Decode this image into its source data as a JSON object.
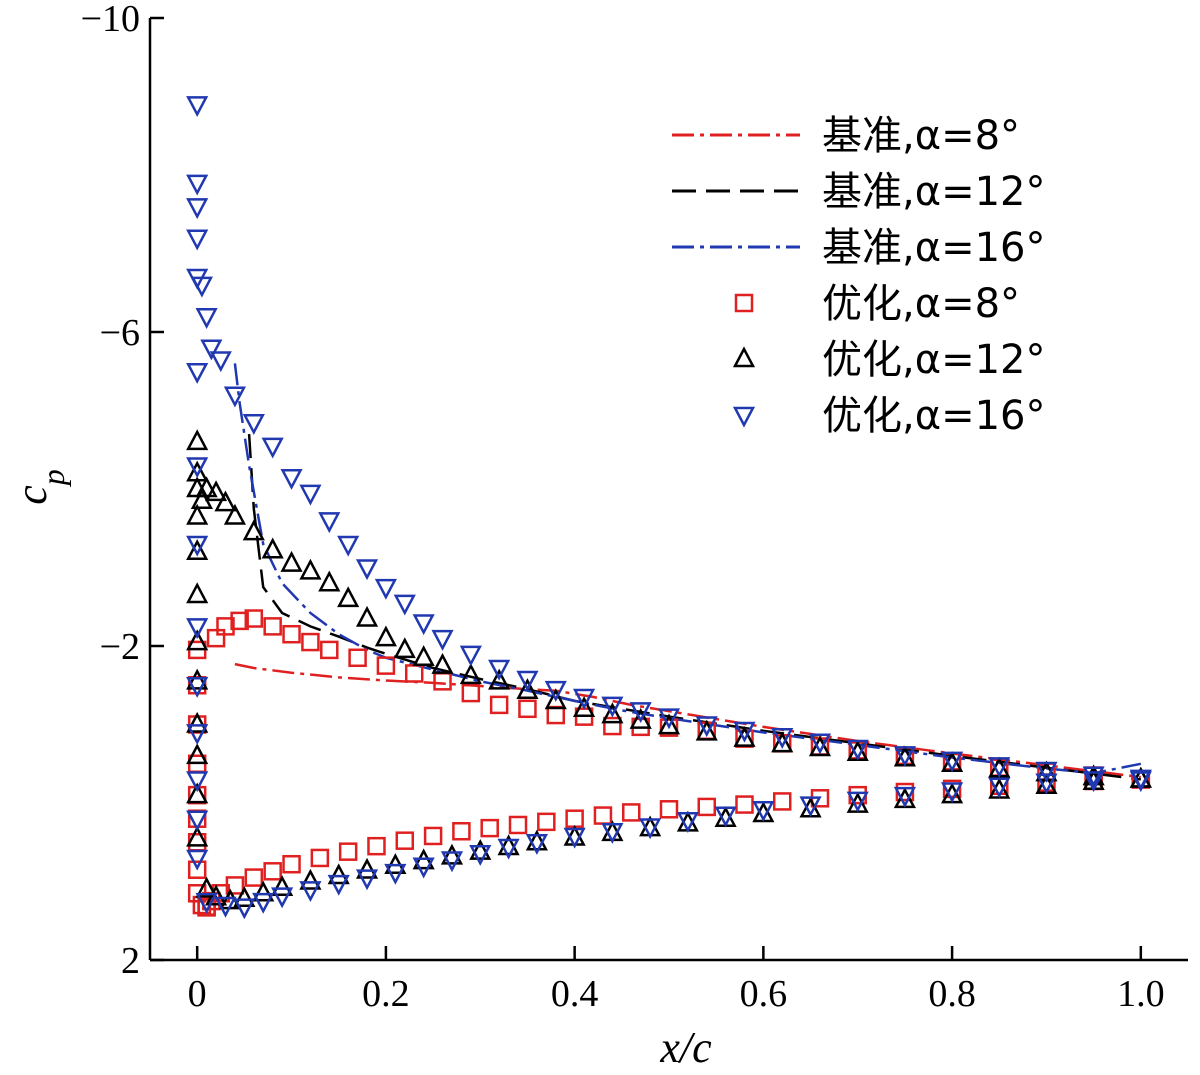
{
  "chart_data": {
    "type": "line",
    "title": "",
    "xlabel": "x/c",
    "ylabel": "c_p",
    "xlim": [
      -0.05,
      1.05
    ],
    "ylim": [
      2,
      -10
    ],
    "y_inverted": true,
    "xticks": [
      0,
      0.2,
      0.4,
      0.6,
      0.8,
      1.0
    ],
    "xtick_labels": [
      "0",
      "0.2",
      "0.4",
      "0.6",
      "0.8",
      "1.0"
    ],
    "yticks": [
      -10,
      -6,
      -2,
      2
    ],
    "ytick_labels": [
      "−10",
      "−6",
      "−2",
      "2"
    ],
    "grid": false,
    "legend_position": "top-right",
    "series": [
      {
        "name": "基准,α=8°",
        "kind": "line",
        "style": "dash-dot",
        "color": "#e02020",
        "x": [
          0.04,
          0.06,
          0.1,
          0.15,
          0.2,
          0.25,
          0.3,
          0.35,
          0.38,
          0.42,
          0.46,
          0.5,
          0.6,
          0.7,
          0.8,
          0.9,
          1.0
        ],
        "y": [
          -1.77,
          -1.72,
          -1.66,
          -1.6,
          -1.56,
          -1.53,
          -1.49,
          -1.45,
          -1.43,
          -1.35,
          -1.25,
          -1.17,
          -0.97,
          -0.79,
          -0.63,
          -0.48,
          -0.33
        ]
      },
      {
        "name": "基准,α=12°",
        "kind": "line",
        "style": "long-dash",
        "color": "#000000",
        "x": [
          0.055,
          0.06,
          0.07,
          0.09,
          0.12,
          0.15,
          0.18,
          0.2,
          0.25,
          0.3,
          0.35,
          0.4,
          0.45,
          0.5,
          0.6,
          0.7,
          0.8,
          0.9,
          1.0
        ],
        "y": [
          -4.7,
          -3.75,
          -2.75,
          -2.42,
          -2.25,
          -2.12,
          -1.98,
          -1.9,
          -1.72,
          -1.58,
          -1.45,
          -1.3,
          -1.2,
          -1.1,
          -0.92,
          -0.76,
          -0.6,
          -0.45,
          -0.3
        ]
      },
      {
        "name": "基准,α=16°",
        "kind": "line",
        "style": "dash-dot",
        "color": "#2038b0",
        "x": [
          0.04,
          0.045,
          0.055,
          0.07,
          0.09,
          0.12,
          0.15,
          0.18,
          0.2,
          0.25,
          0.3,
          0.35,
          0.4,
          0.45,
          0.5,
          0.6,
          0.7,
          0.8,
          0.9,
          0.95,
          1.0
        ],
        "y": [
          -5.6,
          -5.1,
          -4.3,
          -3.3,
          -2.8,
          -2.42,
          -2.15,
          -1.95,
          -1.85,
          -1.7,
          -1.55,
          -1.43,
          -1.3,
          -1.18,
          -1.08,
          -0.9,
          -0.74,
          -0.58,
          -0.44,
          -0.38,
          -0.5
        ]
      },
      {
        "name": "优化,α=8°",
        "kind": "marker",
        "marker": "square",
        "color": "#e02020",
        "x": [
          0,
          0,
          0,
          0,
          0,
          0,
          0,
          0,
          0,
          0.005,
          0.01,
          0.02,
          0.03,
          0.045,
          0.06,
          0.08,
          0.1,
          0.12,
          0.14,
          0.17,
          0.2,
          0.23,
          0.26,
          0.29,
          0.32,
          0.35,
          0.38,
          0.41,
          0.44,
          0.47,
          0.5,
          0.54,
          0.58,
          0.62,
          0.66,
          0.7,
          0.75,
          0.8,
          0.85,
          0.9,
          0.95,
          1.0,
          0.01,
          0.015,
          0.025,
          0.04,
          0.06,
          0.08,
          0.1,
          0.13,
          0.16,
          0.19,
          0.22,
          0.25,
          0.28,
          0.31,
          0.34,
          0.37,
          0.4,
          0.43,
          0.46,
          0.5,
          0.54,
          0.58,
          0.62,
          0.66,
          0.7,
          0.75,
          0.8,
          0.85,
          0.9,
          0.95,
          1.0
        ],
        "y": [
          -1.95,
          -1.5,
          -1.0,
          -0.5,
          -0.1,
          0.2,
          0.5,
          0.85,
          1.15,
          1.3,
          1.33,
          -2.1,
          -2.25,
          -2.32,
          -2.35,
          -2.25,
          -2.15,
          -2.05,
          -1.95,
          -1.85,
          -1.75,
          -1.65,
          -1.55,
          -1.4,
          -1.25,
          -1.2,
          -1.12,
          -1.1,
          -0.98,
          -0.97,
          -0.96,
          -0.92,
          -0.82,
          -0.76,
          -0.72,
          -0.67,
          -0.6,
          -0.53,
          -0.45,
          -0.4,
          -0.35,
          -0.3,
          1.32,
          1.25,
          1.15,
          1.05,
          0.95,
          0.87,
          0.78,
          0.7,
          0.62,
          0.55,
          0.48,
          0.42,
          0.36,
          0.32,
          0.28,
          0.24,
          0.2,
          0.16,
          0.12,
          0.08,
          0.05,
          0.02,
          -0.02,
          -0.06,
          -0.1,
          -0.14,
          -0.18,
          -0.22,
          -0.26,
          -0.28,
          -0.3
        ]
      },
      {
        "name": "优化,α=12°",
        "kind": "marker",
        "marker": "triangle-up",
        "color": "#000000",
        "x": [
          0,
          0,
          0,
          0,
          0,
          0,
          0,
          0,
          0,
          0,
          0,
          0,
          0.005,
          0.01,
          0.02,
          0.03,
          0.04,
          0.06,
          0.08,
          0.1,
          0.12,
          0.14,
          0.16,
          0.18,
          0.2,
          0.22,
          0.24,
          0.26,
          0.29,
          0.32,
          0.35,
          0.38,
          0.41,
          0.44,
          0.47,
          0.5,
          0.54,
          0.58,
          0.62,
          0.66,
          0.7,
          0.75,
          0.8,
          0.85,
          0.9,
          0.95,
          1.0,
          0.01,
          0.02,
          0.035,
          0.05,
          0.07,
          0.09,
          0.12,
          0.15,
          0.18,
          0.21,
          0.24,
          0.27,
          0.3,
          0.33,
          0.36,
          0.4,
          0.44,
          0.48,
          0.52,
          0.56,
          0.6,
          0.65,
          0.7,
          0.75,
          0.8,
          0.85,
          0.9,
          0.95,
          1.0
        ],
        "y": [
          -4.6,
          -4.2,
          -4.0,
          -3.65,
          -3.2,
          -2.65,
          -2.05,
          -1.55,
          -1.0,
          -0.6,
          -0.1,
          0.45,
          -3.85,
          -4.0,
          -3.95,
          -3.82,
          -3.65,
          -3.45,
          -3.22,
          -3.05,
          -2.95,
          -2.8,
          -2.6,
          -2.35,
          -2.1,
          -1.95,
          -1.85,
          -1.75,
          -1.62,
          -1.55,
          -1.43,
          -1.3,
          -1.2,
          -1.12,
          -1.05,
          -0.98,
          -0.9,
          -0.82,
          -0.75,
          -0.7,
          -0.64,
          -0.57,
          -0.5,
          -0.43,
          -0.38,
          -0.33,
          -0.3,
          1.1,
          1.2,
          1.25,
          1.22,
          1.15,
          1.08,
          1.0,
          0.93,
          0.86,
          0.8,
          0.74,
          0.68,
          0.62,
          0.56,
          0.5,
          0.44,
          0.38,
          0.32,
          0.26,
          0.2,
          0.14,
          0.08,
          0.02,
          -0.04,
          -0.1,
          -0.16,
          -0.22,
          -0.27,
          -0.3
        ]
      },
      {
        "name": "优化,α=16°",
        "kind": "marker",
        "marker": "triangle-down",
        "color": "#2038b0",
        "x": [
          0,
          0,
          0,
          0,
          0,
          0,
          0,
          0,
          0,
          0,
          0,
          0,
          0,
          0,
          0.005,
          0.01,
          0.015,
          0.025,
          0.04,
          0.06,
          0.08,
          0.1,
          0.12,
          0.14,
          0.16,
          0.18,
          0.2,
          0.22,
          0.24,
          0.26,
          0.29,
          0.32,
          0.35,
          0.38,
          0.41,
          0.44,
          0.47,
          0.5,
          0.54,
          0.58,
          0.62,
          0.66,
          0.7,
          0.75,
          0.8,
          0.85,
          0.9,
          0.95,
          1.0,
          0.01,
          0.03,
          0.05,
          0.07,
          0.09,
          0.12,
          0.15,
          0.18,
          0.21,
          0.24,
          0.27,
          0.3,
          0.33,
          0.36,
          0.4,
          0.44,
          0.48,
          0.52,
          0.56,
          0.6,
          0.65,
          0.7,
          0.75,
          0.8,
          0.85,
          0.9,
          0.95,
          1.0
        ],
        "y": [
          -8.9,
          -7.9,
          -7.6,
          -7.2,
          -6.7,
          -5.5,
          -4.3,
          -3.3,
          -2.25,
          -1.5,
          -0.9,
          -0.3,
          0.2,
          0.7,
          -6.6,
          -6.2,
          -5.8,
          -5.65,
          -5.2,
          -4.85,
          -4.55,
          -4.15,
          -3.95,
          -3.6,
          -3.3,
          -3.0,
          -2.75,
          -2.55,
          -2.3,
          -2.1,
          -1.9,
          -1.72,
          -1.58,
          -1.45,
          -1.35,
          -1.25,
          -1.18,
          -1.1,
          -1.0,
          -0.93,
          -0.85,
          -0.78,
          -0.7,
          -0.62,
          -0.55,
          -0.48,
          -0.42,
          -0.36,
          -0.3,
          1.25,
          1.3,
          1.32,
          1.25,
          1.18,
          1.1,
          1.02,
          0.95,
          0.88,
          0.8,
          0.72,
          0.64,
          0.56,
          0.5,
          0.42,
          0.36,
          0.3,
          0.22,
          0.15,
          0.08,
          0.02,
          -0.04,
          -0.1,
          -0.16,
          -0.22,
          -0.27,
          -0.3,
          -0.32
        ]
      }
    ]
  }
}
